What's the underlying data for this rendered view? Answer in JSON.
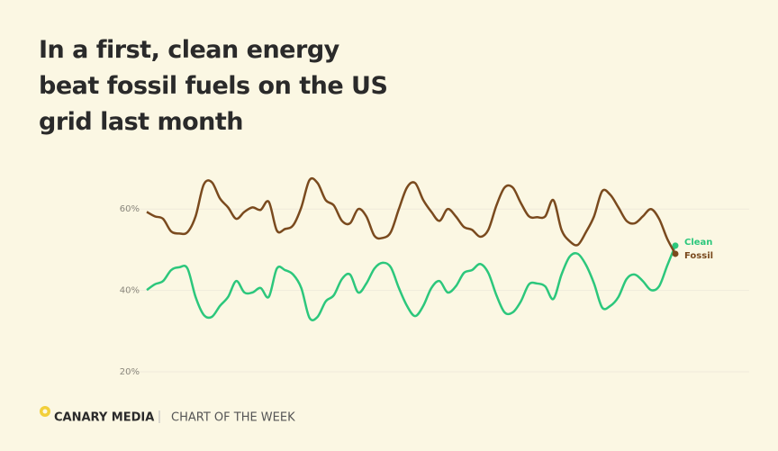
{
  "chart_data": {
    "type": "line",
    "title": "In a first, clean energy beat fossil fuels on the US grid last month",
    "brand": "CANARY MEDIA",
    "section": "CHART OF THE WEEK",
    "ylim": [
      20,
      72
    ],
    "yticks": [
      {
        "value": 20,
        "label": "20%"
      },
      {
        "value": 40,
        "label": "40%"
      },
      {
        "value": 60,
        "label": "60%"
      }
    ],
    "grid": true,
    "series": [
      {
        "name": "Clean",
        "color": "#2cc77c",
        "values": [
          40.1,
          41.5,
          42.3,
          45.0,
          45.7,
          45.4,
          38.4,
          34.0,
          33.5,
          36.2,
          38.4,
          42.3,
          39.5,
          39.5,
          40.6,
          38.4,
          45.4,
          45.0,
          43.9,
          40.6,
          33.3,
          33.5,
          37.3,
          38.8,
          42.8,
          43.9,
          39.5,
          41.7,
          45.4,
          46.8,
          45.7,
          40.6,
          36.2,
          33.7,
          36.2,
          40.6,
          42.3,
          39.5,
          41.0,
          44.3,
          45.0,
          46.5,
          44.3,
          38.8,
          34.6,
          34.6,
          37.3,
          41.5,
          41.7,
          41.0,
          37.9,
          43.9,
          48.3,
          49.0,
          46.3,
          41.7,
          35.8,
          36.2,
          38.4,
          42.8,
          43.9,
          42.3,
          40.1,
          41.0,
          46.1,
          51.0
        ]
      },
      {
        "name": "Fossil",
        "color": "#7a4a1e",
        "values": [
          59.3,
          58.2,
          57.6,
          54.5,
          54.0,
          54.3,
          58.2,
          66.0,
          66.6,
          62.6,
          60.4,
          57.6,
          59.3,
          60.4,
          59.8,
          61.8,
          54.7,
          55.1,
          56.0,
          60.4,
          67.1,
          66.4,
          62.2,
          60.9,
          57.1,
          56.5,
          60.0,
          58.2,
          53.4,
          52.9,
          54.3,
          60.0,
          65.3,
          66.4,
          62.2,
          59.3,
          57.1,
          60.0,
          58.2,
          55.6,
          54.9,
          53.2,
          54.9,
          60.9,
          65.3,
          65.3,
          61.5,
          58.2,
          58.0,
          58.2,
          62.2,
          54.9,
          52.1,
          51.2,
          54.3,
          58.2,
          64.4,
          63.5,
          60.4,
          57.1,
          56.5,
          58.2,
          60.0,
          57.6,
          52.7,
          49.0
        ]
      }
    ]
  }
}
